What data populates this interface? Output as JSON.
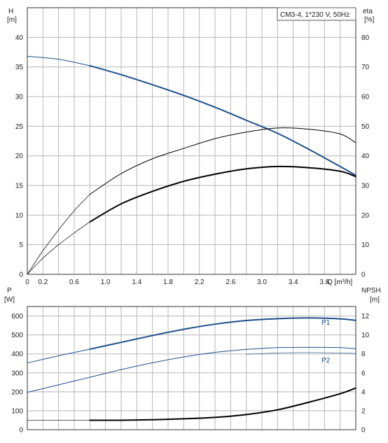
{
  "legend": "CM3-4, 1*230 V, 50Hz",
  "colors": {
    "pump_curve": "#1f4e8c",
    "grid": "#b8b8b8",
    "black": "#000000"
  },
  "chart_data": [
    {
      "type": "line",
      "x_ticks": [
        "0",
        "0.2",
        "0.6",
        "1.0",
        "1.4",
        "1.8",
        "2.2",
        "2.6",
        "3.0",
        "3.4",
        "3.8"
      ],
      "xlabel": "Q [m³/h]",
      "xlim": [
        0,
        4.2
      ],
      "left_axis": {
        "label": "H",
        "unit": "[m]",
        "ylim": [
          0,
          45
        ],
        "ticks": [
          0,
          5,
          10,
          15,
          20,
          25,
          30,
          35,
          40
        ]
      },
      "right_axis": {
        "label": "eta",
        "unit": "[%]",
        "ylim": [
          0,
          90
        ],
        "ticks": [
          0,
          10,
          20,
          30,
          40,
          50,
          60,
          70,
          80
        ]
      },
      "series": [
        {
          "axis": "left",
          "color": "#1f4e8c",
          "width": 2,
          "points": [
            [
              0.8,
              35.2
            ],
            [
              1.2,
              33.7
            ],
            [
              1.6,
              32.0
            ],
            [
              2.0,
              30.2
            ],
            [
              2.4,
              28.2
            ],
            [
              2.8,
              26.0
            ],
            [
              3.2,
              23.8
            ],
            [
              3.6,
              21.1
            ],
            [
              4.0,
              18.2
            ],
            [
              4.2,
              16.7
            ]
          ]
        },
        {
          "axis": "left",
          "color": "#1f4e8c",
          "width": 1,
          "points": [
            [
              0,
              36.8
            ],
            [
              0.4,
              36.3
            ],
            [
              0.8,
              35.2
            ]
          ]
        },
        {
          "axis": "right",
          "color": "#000000",
          "width": 1,
          "points": [
            [
              0.8,
              27.0
            ],
            [
              1.2,
              34.0
            ],
            [
              1.6,
              39.0
            ],
            [
              2.0,
              42.5
            ],
            [
              2.4,
              45.8
            ],
            [
              2.8,
              48.0
            ],
            [
              3.2,
              49.4
            ],
            [
              3.6,
              49.0
            ],
            [
              4.0,
              47.4
            ],
            [
              4.2,
              44.4
            ]
          ]
        },
        {
          "axis": "right",
          "color": "#000000",
          "width": 0.7,
          "points": [
            [
              0,
              0
            ],
            [
              0.2,
              8.0
            ],
            [
              0.4,
              15.0
            ],
            [
              0.6,
              21.5
            ],
            [
              0.8,
              27.0
            ]
          ]
        },
        {
          "axis": "right",
          "color": "#000000",
          "width": 2,
          "points": [
            [
              0.8,
              17.7
            ],
            [
              1.2,
              23.8
            ],
            [
              1.6,
              28.0
            ],
            [
              2.0,
              31.4
            ],
            [
              2.4,
              33.8
            ],
            [
              2.8,
              35.6
            ],
            [
              3.2,
              36.4
            ],
            [
              3.6,
              36.0
            ],
            [
              4.0,
              34.8
            ],
            [
              4.2,
              33.0
            ]
          ]
        },
        {
          "axis": "right",
          "color": "#000000",
          "width": 0.7,
          "points": [
            [
              0,
              0
            ],
            [
              0.2,
              5.5
            ],
            [
              0.4,
              10.0
            ],
            [
              0.6,
              14.0
            ],
            [
              0.8,
              17.7
            ]
          ]
        }
      ]
    },
    {
      "type": "line",
      "x_ticks": [],
      "xlim": [
        0,
        4.2
      ],
      "left_axis": {
        "label": "P",
        "unit": "[W]",
        "ylim": [
          0,
          650
        ],
        "ticks": [
          0,
          100,
          200,
          300,
          400,
          500,
          600
        ]
      },
      "right_axis": {
        "label": "NPSH",
        "unit": "[m]",
        "ylim": [
          0,
          13
        ],
        "ticks": [
          0,
          2,
          4,
          6,
          8,
          10,
          12
        ]
      },
      "series": [
        {
          "name": "P1",
          "axis": "left",
          "color": "#1f4e8c",
          "width": 2,
          "points": [
            [
              0.8,
              425
            ],
            [
              1.2,
              461
            ],
            [
              1.6,
              497
            ],
            [
              2.0,
              530
            ],
            [
              2.4,
              557
            ],
            [
              2.8,
              576
            ],
            [
              3.2,
              586
            ],
            [
              3.6,
              590
            ],
            [
              4.0,
              585
            ],
            [
              4.2,
              577
            ]
          ]
        },
        {
          "axis": "left",
          "color": "#1f4e8c",
          "width": 1,
          "points": [
            [
              0,
              352
            ],
            [
              0.4,
              390
            ],
            [
              0.8,
              425
            ]
          ]
        },
        {
          "name": "P2",
          "axis": "left",
          "color": "#1f4e8c",
          "width": 1,
          "points": [
            [
              0,
              197
            ],
            [
              0.4,
              237
            ],
            [
              0.8,
              277
            ],
            [
              1.2,
              317
            ],
            [
              1.6,
              353
            ],
            [
              2.0,
              384
            ],
            [
              2.4,
              408
            ],
            [
              2.8,
              424
            ],
            [
              3.2,
              433
            ],
            [
              3.6,
              435
            ],
            [
              4.0,
              433
            ],
            [
              4.2,
              427
            ]
          ]
        },
        {
          "axis": "left",
          "color": "#1f4e8c",
          "width": 0.6,
          "points": [
            [
              2.8,
              398
            ],
            [
              3.2,
              405
            ],
            [
              3.6,
              407
            ],
            [
              4.0,
              405
            ],
            [
              4.2,
              402
            ]
          ]
        },
        {
          "axis": "right",
          "color": "#000000",
          "width": 2,
          "points": [
            [
              0.8,
              1.0
            ],
            [
              1.2,
              1.0
            ],
            [
              1.6,
              1.05
            ],
            [
              2.0,
              1.15
            ],
            [
              2.4,
              1.3
            ],
            [
              2.8,
              1.6
            ],
            [
              3.2,
              2.1
            ],
            [
              3.6,
              2.9
            ],
            [
              4.0,
              3.8
            ],
            [
              4.2,
              4.4
            ]
          ]
        },
        {
          "axis": "right",
          "color": "#000000",
          "width": 0.7,
          "points": [
            [
              0,
              1.0
            ],
            [
              0.4,
              1.0
            ],
            [
              0.8,
              1.0
            ]
          ]
        }
      ]
    }
  ]
}
